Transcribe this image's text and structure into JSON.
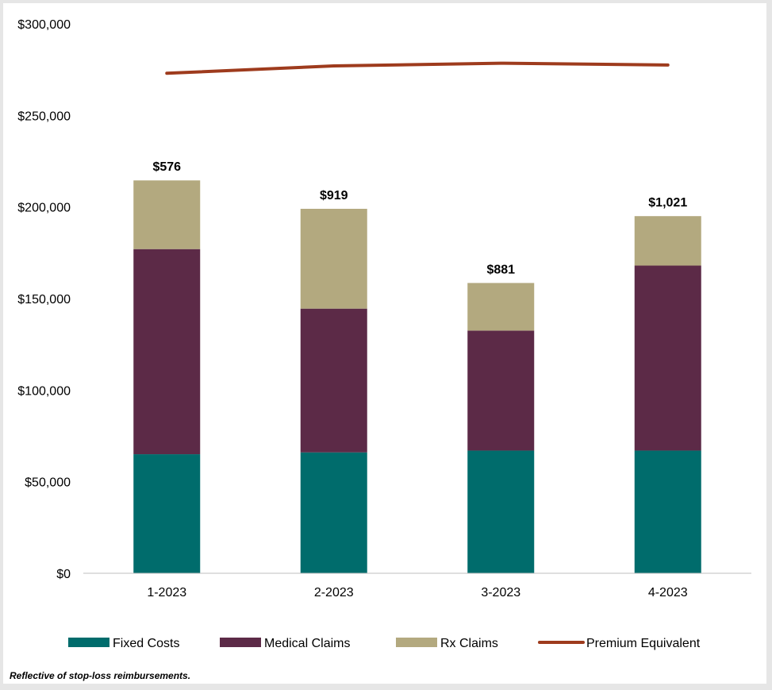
{
  "chart_data": {
    "type": "bar",
    "stacked": true,
    "categories": [
      "1-2023",
      "2-2023",
      "3-2023",
      "4-2023"
    ],
    "series": [
      {
        "name": "Fixed Costs",
        "kind": "bar",
        "color": "#006c6c",
        "values": [
          65000,
          66000,
          67000,
          67000
        ]
      },
      {
        "name": "Medical Claims",
        "kind": "bar",
        "color": "#5c2a47",
        "values": [
          112000,
          78500,
          65500,
          101000
        ]
      },
      {
        "name": "Rx Claims",
        "kind": "bar",
        "color": "#b3a97f",
        "values": [
          37500,
          54500,
          26000,
          27000
        ]
      },
      {
        "name": "Premium Equivalent",
        "kind": "line",
        "color": "#9e3b1d",
        "values": [
          273000,
          277000,
          278500,
          277500
        ]
      }
    ],
    "bar_labels": [
      "$576",
      "$919",
      "$881",
      "$1,021"
    ],
    "y_ticks": [
      "$0",
      "$50,000",
      "$100,000",
      "$150,000",
      "$200,000",
      "$250,000",
      "$300,000"
    ],
    "y_tick_values": [
      0,
      50000,
      100000,
      150000,
      200000,
      250000,
      300000
    ],
    "ylim": [
      0,
      300000
    ],
    "grid": false,
    "legend_position": "bottom"
  },
  "footnote": "Reflective of stop-loss reimbursements."
}
